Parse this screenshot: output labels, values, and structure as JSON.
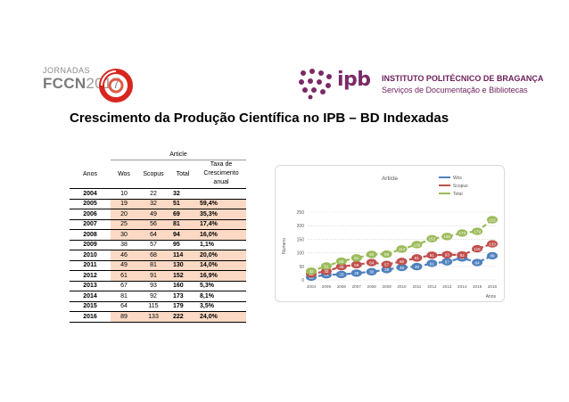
{
  "header": {
    "fccn_small": "JORNADAS",
    "fccn_big": "FCCN",
    "fccn_year": "2017",
    "ipb_logo": "ipb",
    "ipb_institute": "INSTITUTO POLITÉCNICO DE BRAGANÇA",
    "ipb_services": "Serviços de Documentação e Bibliotecas"
  },
  "title": "Crescimento da Produção Científica no IPB – BD Indexadas",
  "table": {
    "group_header": "Article",
    "col_anos": "Anos",
    "col_wos": "Wos",
    "col_scopus": "Scopus",
    "col_total": "Total",
    "col_taxa": "Taxa de Crescimento anual",
    "rows": [
      {
        "ano": "2004",
        "wos": "10",
        "scopus": "22",
        "total": "32",
        "taxa": ""
      },
      {
        "ano": "2005",
        "wos": "19",
        "scopus": "32",
        "total": "51",
        "taxa": "59,4%"
      },
      {
        "ano": "2006",
        "wos": "20",
        "scopus": "49",
        "total": "69",
        "taxa": "35,3%"
      },
      {
        "ano": "2007",
        "wos": "25",
        "scopus": "56",
        "total": "81",
        "taxa": "17,4%"
      },
      {
        "ano": "2008",
        "wos": "30",
        "scopus": "64",
        "total": "94",
        "taxa": "16,0%"
      },
      {
        "ano": "2009",
        "wos": "38",
        "scopus": "57",
        "total": "95",
        "taxa": "1,1%"
      },
      {
        "ano": "2010",
        "wos": "46",
        "scopus": "68",
        "total": "114",
        "taxa": "20,0%"
      },
      {
        "ano": "2011",
        "wos": "49",
        "scopus": "81",
        "total": "130",
        "taxa": "14,0%"
      },
      {
        "ano": "2012",
        "wos": "61",
        "scopus": "91",
        "total": "152",
        "taxa": "16,9%"
      },
      {
        "ano": "2013",
        "wos": "67",
        "scopus": "93",
        "total": "160",
        "taxa": "5,3%"
      },
      {
        "ano": "2014",
        "wos": "81",
        "scopus": "92",
        "total": "173",
        "taxa": "8,1%"
      },
      {
        "ano": "2015",
        "wos": "64",
        "scopus": "115",
        "total": "179",
        "taxa": "3,5%"
      },
      {
        "ano": "2016",
        "wos": "89",
        "scopus": "133",
        "total": "222",
        "taxa": "24,0%"
      }
    ],
    "highlight_rows": [
      1,
      2,
      3,
      4,
      6,
      7,
      8,
      12
    ]
  },
  "chart_data": {
    "type": "line",
    "title": "Article",
    "xlabel": "Anos",
    "ylabel": "Numero",
    "categories": [
      "2004",
      "2005",
      "2006",
      "2007",
      "2008",
      "2009",
      "2010",
      "2011",
      "2012",
      "2013",
      "2014",
      "2015",
      "2016"
    ],
    "ylim": [
      0,
      250
    ],
    "yticks": [
      0,
      50,
      100,
      150,
      200,
      250
    ],
    "grid": true,
    "legend": "top-right",
    "series": [
      {
        "name": "Wos",
        "color": "#4f81bd",
        "values": [
          10,
          19,
          20,
          25,
          30,
          38,
          46,
          49,
          61,
          67,
          81,
          64,
          89
        ]
      },
      {
        "name": "Scopus",
        "color": "#c0504d",
        "values": [
          22,
          32,
          49,
          56,
          64,
          57,
          68,
          81,
          91,
          93,
          92,
          115,
          133
        ]
      },
      {
        "name": "Total",
        "color": "#9bbb59",
        "values": [
          32,
          51,
          69,
          81,
          94,
          95,
          114,
          130,
          152,
          160,
          173,
          179,
          222
        ]
      }
    ]
  },
  "colors": {
    "ipb_purple": "#7a2a66",
    "fccn_red": "#d7261e",
    "highlight": "#fbd9c4"
  }
}
